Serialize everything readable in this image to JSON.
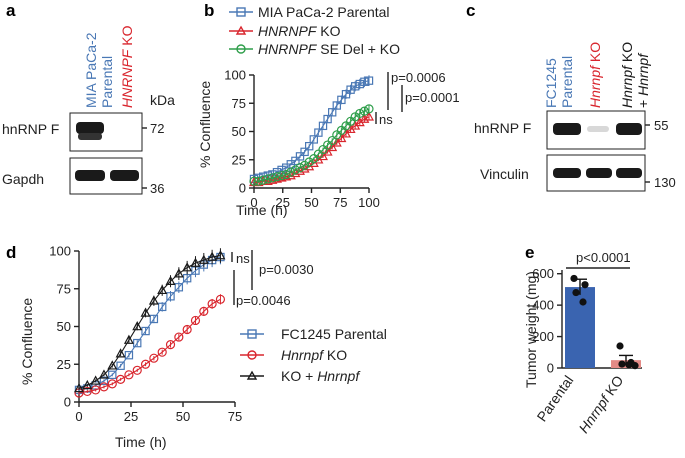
{
  "panels": {
    "a": {
      "label": "a",
      "lanes": [
        "MIA PaCa-2\nParental",
        "HNRNPF KO"
      ],
      "lane_colors": [
        "#4a78b5",
        "#d9262e"
      ],
      "kda_label": "kDa",
      "blots": [
        {
          "name": "hnRNP F",
          "marker": "72"
        },
        {
          "name": "Gapdh",
          "marker": "36"
        }
      ]
    },
    "c": {
      "label": "c",
      "lanes": [
        "FC1245\nParental",
        "Hnrnpf KO",
        "Hnrnpf KO\n+ Hnrnpf"
      ],
      "lane_colors": [
        "#4a78b5",
        "#d9262e",
        "#1a1a1a"
      ],
      "kda_label": "kDa",
      "blots": [
        {
          "name": "hnRNP F",
          "marker": "55"
        },
        {
          "name": "Vinculin",
          "marker": "130"
        }
      ]
    },
    "b": {
      "label": "b",
      "p1": "p=0.0006",
      "p2": "p=0.0001",
      "ns": "ns"
    },
    "d": {
      "label": "d",
      "ns": "ns",
      "p1": "p=0.0030",
      "p2": "p=0.0046"
    },
    "e": {
      "label": "e",
      "p": "p<0.0001"
    }
  },
  "colors": {
    "blue": "#4a78b5",
    "red": "#d9262e",
    "green": "#2e9e4a",
    "black": "#1a1a1a",
    "bar_blue": "#3a64b0",
    "bar_red": "#e38a86"
  },
  "chart_data": [
    {
      "id": "b",
      "type": "line",
      "xlabel": "Time (h)",
      "ylabel": "% Confluence",
      "xlim": [
        0,
        100
      ],
      "ylim": [
        0,
        100
      ],
      "xticks": [
        0,
        25,
        50,
        75,
        100
      ],
      "yticks": [
        0,
        25,
        50,
        75,
        100
      ],
      "x": [
        0,
        4,
        8,
        12,
        16,
        20,
        24,
        28,
        32,
        36,
        40,
        44,
        48,
        52,
        56,
        60,
        64,
        68,
        72,
        76,
        80,
        84,
        88,
        92,
        96,
        100
      ],
      "series": [
        {
          "name": "MIA PaCa-2 Parental",
          "marker": "square",
          "color": "#4a78b5",
          "values": [
            8,
            9,
            10,
            11,
            12,
            14,
            16,
            18,
            21,
            24,
            28,
            32,
            37,
            43,
            49,
            55,
            61,
            67,
            73,
            78,
            83,
            87,
            90,
            92,
            94,
            95
          ]
        },
        {
          "name": "HNRNPF KO",
          "marker": "triangle",
          "color": "#d9262e",
          "values": [
            5,
            5,
            6,
            6,
            7,
            8,
            9,
            10,
            11,
            13,
            15,
            17,
            19,
            22,
            25,
            28,
            32,
            36,
            40,
            44,
            48,
            52,
            55,
            58,
            61,
            63
          ]
        },
        {
          "name": "HNRNPF SE Del + KO",
          "marker": "circle",
          "color": "#2e9e4a",
          "values": [
            6,
            6,
            7,
            8,
            9,
            10,
            11,
            12,
            14,
            16,
            18,
            20,
            23,
            26,
            30,
            34,
            38,
            42,
            47,
            51,
            55,
            59,
            63,
            66,
            68,
            70
          ]
        }
      ]
    },
    {
      "id": "d",
      "type": "line",
      "xlabel": "Time (h)",
      "ylabel": "% Confluence",
      "xlim": [
        0,
        75
      ],
      "ylim": [
        0,
        100
      ],
      "xticks": [
        0,
        25,
        50,
        75
      ],
      "yticks": [
        0,
        25,
        50,
        75,
        100
      ],
      "x": [
        0,
        4,
        8,
        12,
        16,
        20,
        24,
        28,
        32,
        36,
        40,
        44,
        48,
        52,
        56,
        60,
        64,
        68
      ],
      "series": [
        {
          "name": "FC1245 Parental",
          "marker": "square",
          "color": "#4a78b5",
          "values": [
            8,
            9,
            11,
            14,
            18,
            24,
            31,
            39,
            47,
            55,
            63,
            70,
            76,
            82,
            87,
            91,
            94,
            96
          ]
        },
        {
          "name": "Hnrnpf KO",
          "marker": "circle",
          "color": "#d9262e",
          "values": [
            6,
            7,
            8,
            10,
            12,
            15,
            18,
            21,
            25,
            29,
            33,
            38,
            43,
            48,
            54,
            60,
            65,
            68
          ]
        },
        {
          "name": "KO + Hnrnpf",
          "marker": "triangle",
          "color": "#1a1a1a",
          "values": [
            9,
            11,
            14,
            18,
            24,
            32,
            41,
            50,
            59,
            67,
            74,
            80,
            85,
            89,
            92,
            94,
            96,
            97
          ]
        }
      ]
    },
    {
      "id": "e",
      "type": "bar",
      "ylabel": "Tumor weight (mg)",
      "ylim": [
        0,
        700
      ],
      "yticks": [
        0,
        200,
        400,
        600
      ],
      "categories": [
        "Parental",
        "Hnrnpf KO"
      ],
      "values": [
        515,
        50
      ],
      "errors": [
        50,
        30
      ],
      "points": [
        [
          570,
          530,
          480,
          420
        ],
        [
          140,
          35,
          25,
          20,
          15
        ]
      ]
    }
  ]
}
